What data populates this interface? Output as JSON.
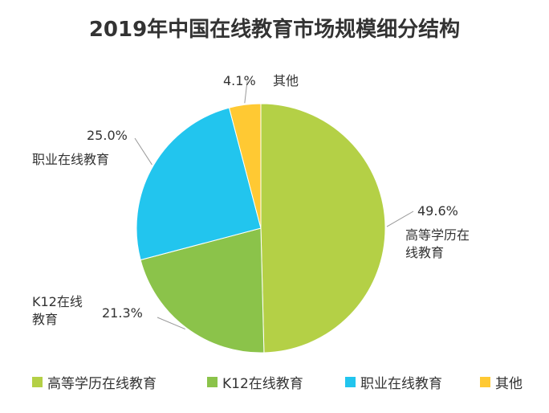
{
  "chart_data": {
    "type": "pie",
    "title": "2019年中国在线教育市场规模细分结构",
    "categories": [
      "高等学历在线教育",
      "K12在线教育",
      "职业在线教育",
      "其他"
    ],
    "values": [
      49.6,
      21.3,
      25.0,
      4.1
    ],
    "value_labels": [
      "49.6%",
      "21.3%",
      "25.0%",
      "4.1%"
    ],
    "colors": [
      "#b4d046",
      "#8bc34a",
      "#22c5ee",
      "#ffc933"
    ],
    "legend": "bottom"
  }
}
